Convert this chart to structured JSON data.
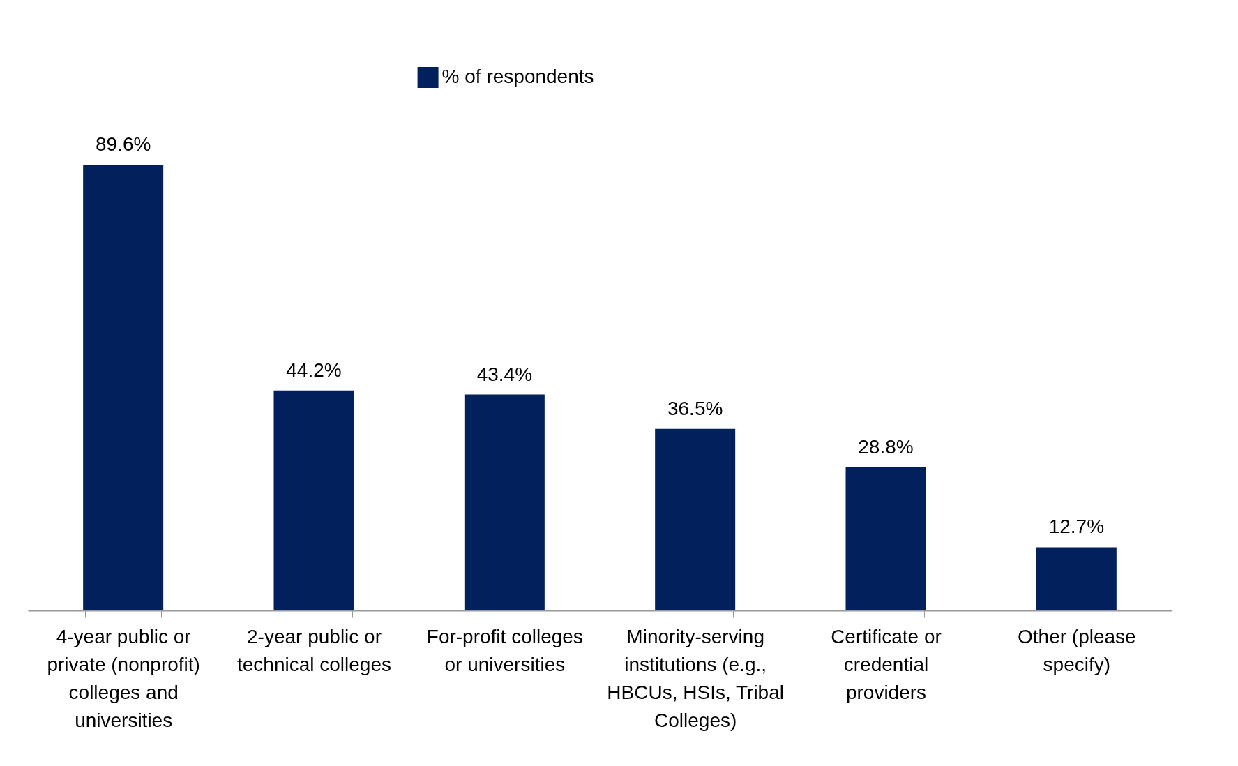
{
  "chart_data": {
    "type": "bar",
    "categories": [
      "4-year public or private (nonprofit) colleges and universities",
      "2-year public or technical colleges",
      "For-profit colleges or universities",
      "Minority-serving institutions (e.g., HBCUs, HSIs, Tribal Colleges)",
      "Certificate or credential providers",
      "Other (please specify)"
    ],
    "series": [
      {
        "name": "% of respondents",
        "color": "#02205c",
        "values": [
          89.6,
          44.2,
          43.4,
          36.5,
          28.8,
          12.7
        ],
        "value_labels": [
          "89.6%",
          "44.2%",
          "43.4%",
          "36.5%",
          "28.8%",
          "12.7%"
        ]
      }
    ],
    "legend": "top",
    "grid": false
  }
}
